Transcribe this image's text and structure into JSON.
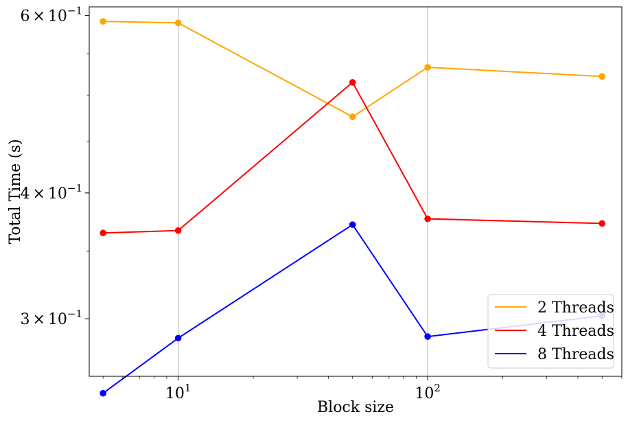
{
  "chart_data": {
    "type": "line",
    "xlabel": "Block size",
    "ylabel": "Total Time (s)",
    "xscale": "log",
    "yscale": "log",
    "xlim": [
      4.4,
      600
    ],
    "ylim": [
      0.263,
      0.612
    ],
    "x": [
      5,
      10,
      50,
      100,
      500
    ],
    "grid": "vertical major gridlines at x-axis decades",
    "legend_position": "lower-right",
    "xticks": [
      {
        "value": 10,
        "base": "10",
        "exp": "1"
      },
      {
        "value": 100,
        "base": "10",
        "exp": "2"
      }
    ],
    "yticks": [
      {
        "value": 0.6,
        "coef": "6",
        "times": "×",
        "base": "10",
        "exp": "−1"
      },
      {
        "value": 0.4,
        "coef": "4",
        "times": "×",
        "base": "10",
        "exp": "−1"
      },
      {
        "value": 0.3,
        "coef": "3",
        "times": "×",
        "base": "10",
        "exp": "−1"
      }
    ],
    "series": [
      {
        "name": "2 Threads",
        "color": "#FFA500",
        "values": [
          0.592,
          0.59,
          0.476,
          0.533,
          0.522
        ]
      },
      {
        "name": "4 Threads",
        "color": "#FF0000",
        "values": [
          0.365,
          0.367,
          0.515,
          0.377,
          0.373
        ]
      },
      {
        "name": "8 Threads",
        "color": "#0000FF",
        "values": [
          0.253,
          0.287,
          0.372,
          0.288,
          0.302
        ]
      }
    ]
  }
}
